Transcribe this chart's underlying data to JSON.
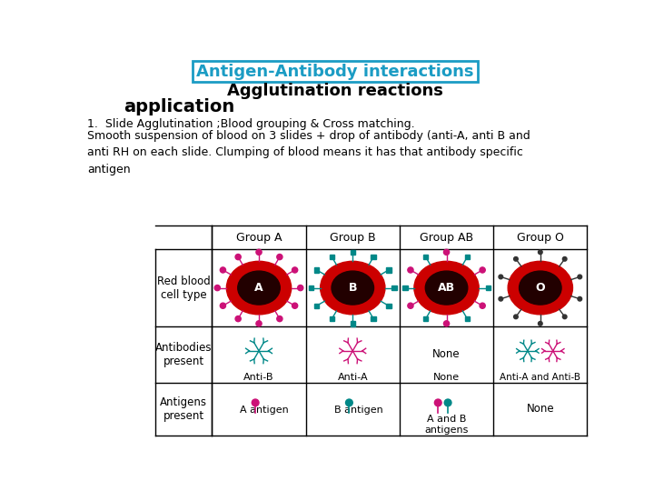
{
  "title1": "Antigen-Antibody interactions",
  "title2": "Agglutination reactions",
  "title3": "application",
  "title1_color": "#1B9CC4",
  "title1_box_color": "#1B9CC4",
  "title2_color": "#000000",
  "title3_color": "#000000",
  "body_text1": "1.  Slide Agglutination ;Blood grouping & Cross matching.",
  "body_text2": "Smooth suspension of blood on 3 slides + drop of antibody (anti-A, anti B and\nanti RH on each slide. Clumping of blood means it has that antibody specific\nantigen",
  "col_headers": [
    "Group A",
    "Group B",
    "Group AB",
    "Group O"
  ],
  "row_headers": [
    "Red blood\ncell type",
    "Antibodies\npresent",
    "Antigens\npresent"
  ],
  "antibody_labels": [
    "Anti-B",
    "Anti-A",
    "None",
    "Anti-A and Anti-B"
  ],
  "antigen_labels": [
    "A antigen",
    "B antigen",
    "A and B\nantigens",
    "None"
  ],
  "bg_color": "#FFFFFF",
  "table_line_color": "#000000",
  "antigen_A_color": "#CC1177",
  "antigen_B_color": "#008888",
  "rbc_outer_color": "#CC0000",
  "rbc_inner_color": "#220000",
  "antibody_A_color": "#CC1177",
  "antibody_B_color": "#008888"
}
